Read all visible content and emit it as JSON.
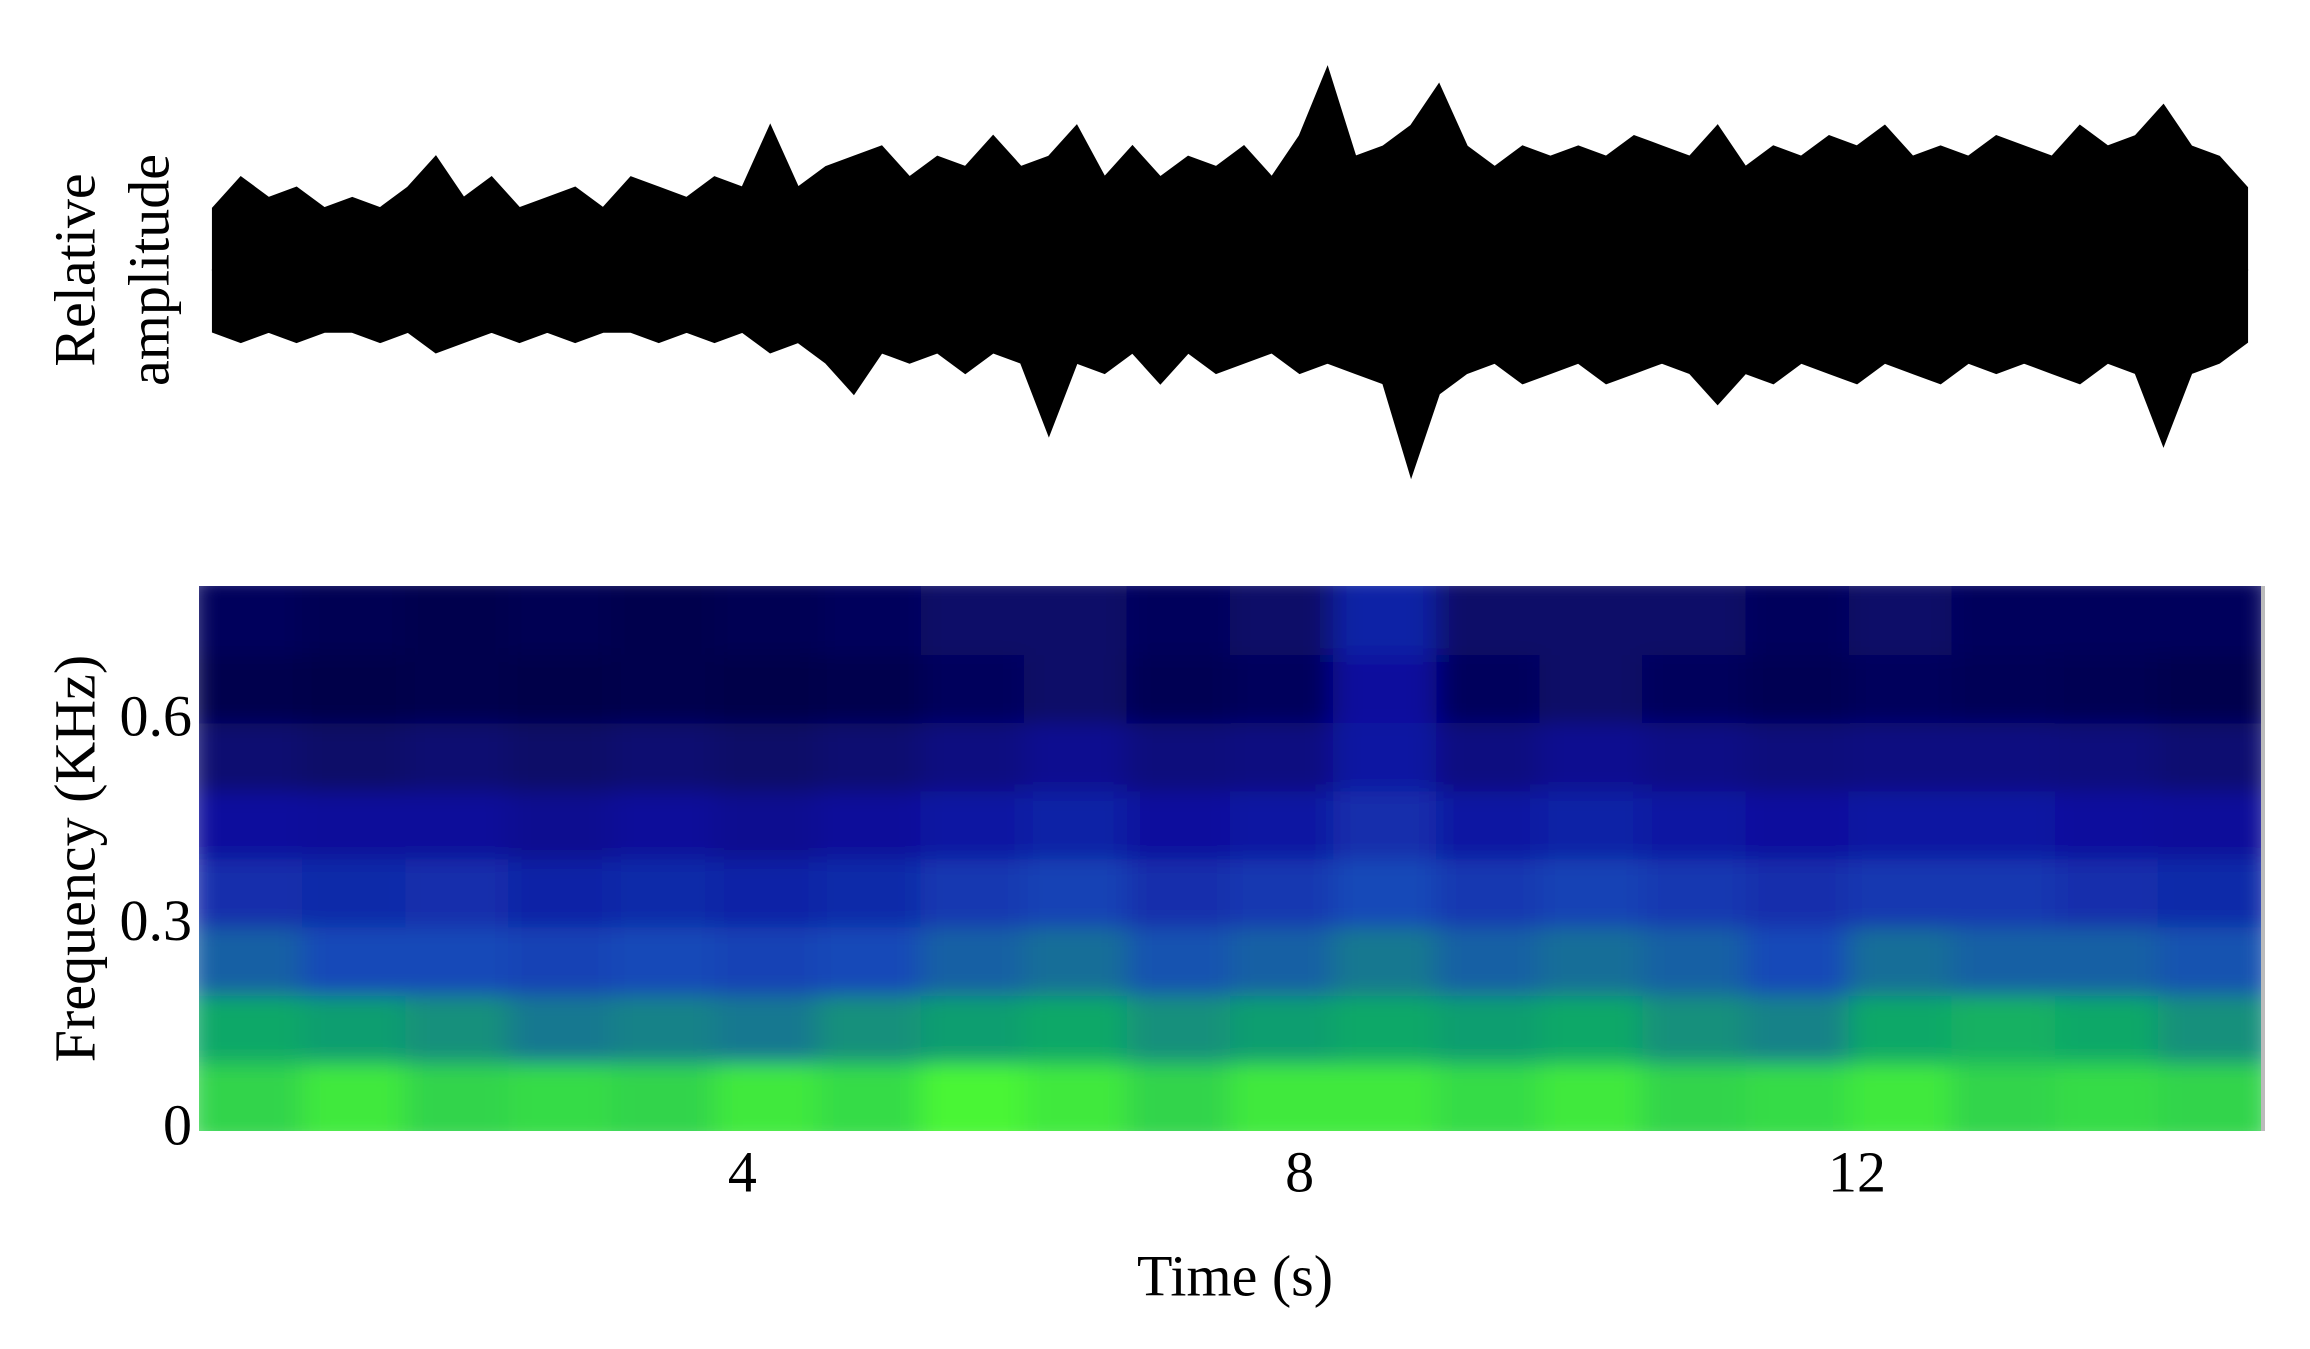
{
  "chart_data": [
    {
      "type": "area",
      "ylabel": [
        "Relative",
        "amplitude"
      ],
      "color": "#000000",
      "xlim": [
        0.1,
        14.9
      ],
      "ylim": [
        -1,
        1
      ],
      "x": [
        0.2,
        0.4,
        0.6,
        0.8,
        1.0,
        1.2,
        1.4,
        1.6,
        1.8,
        2.0,
        2.2,
        2.4,
        2.6,
        2.8,
        3.0,
        3.2,
        3.4,
        3.6,
        3.8,
        4.0,
        4.2,
        4.4,
        4.6,
        4.8,
        5.0,
        5.2,
        5.4,
        5.6,
        5.8,
        6.0,
        6.2,
        6.4,
        6.6,
        6.8,
        7.0,
        7.2,
        7.4,
        7.6,
        7.8,
        8.0,
        8.2,
        8.4,
        8.6,
        8.8,
        9.0,
        9.2,
        9.4,
        9.6,
        9.8,
        10.0,
        10.2,
        10.4,
        10.6,
        10.8,
        11.0,
        11.2,
        11.4,
        11.6,
        11.8,
        12.0,
        12.2,
        12.4,
        12.6,
        12.8,
        13.0,
        13.2,
        13.4,
        13.6,
        13.8,
        14.0,
        14.2,
        14.4,
        14.6,
        14.8
      ],
      "upper": [
        0.3,
        0.45,
        0.35,
        0.4,
        0.3,
        0.35,
        0.3,
        0.4,
        0.55,
        0.35,
        0.45,
        0.3,
        0.35,
        0.4,
        0.3,
        0.45,
        0.4,
        0.35,
        0.45,
        0.4,
        0.7,
        0.4,
        0.5,
        0.55,
        0.6,
        0.45,
        0.55,
        0.5,
        0.65,
        0.5,
        0.55,
        0.7,
        0.45,
        0.6,
        0.45,
        0.55,
        0.5,
        0.6,
        0.45,
        0.65,
        0.98,
        0.55,
        0.6,
        0.7,
        0.9,
        0.6,
        0.5,
        0.6,
        0.55,
        0.6,
        0.55,
        0.65,
        0.6,
        0.55,
        0.7,
        0.5,
        0.6,
        0.55,
        0.65,
        0.6,
        0.7,
        0.55,
        0.6,
        0.55,
        0.65,
        0.6,
        0.55,
        0.7,
        0.6,
        0.65,
        0.8,
        0.6,
        0.55,
        0.4
      ],
      "lower": [
        -0.3,
        -0.35,
        -0.3,
        -0.35,
        -0.3,
        -0.3,
        -0.35,
        -0.3,
        -0.4,
        -0.35,
        -0.3,
        -0.35,
        -0.3,
        -0.35,
        -0.3,
        -0.3,
        -0.35,
        -0.3,
        -0.35,
        -0.3,
        -0.4,
        -0.35,
        -0.45,
        -0.6,
        -0.4,
        -0.45,
        -0.4,
        -0.5,
        -0.4,
        -0.45,
        -0.8,
        -0.45,
        -0.5,
        -0.4,
        -0.55,
        -0.4,
        -0.5,
        -0.45,
        -0.4,
        -0.5,
        -0.45,
        -0.5,
        -0.55,
        -1.0,
        -0.6,
        -0.5,
        -0.45,
        -0.55,
        -0.5,
        -0.45,
        -0.55,
        -0.5,
        -0.45,
        -0.5,
        -0.65,
        -0.5,
        -0.55,
        -0.45,
        -0.5,
        -0.55,
        -0.45,
        -0.5,
        -0.55,
        -0.45,
        -0.5,
        -0.45,
        -0.5,
        -0.55,
        -0.45,
        -0.5,
        -0.85,
        -0.5,
        -0.45,
        -0.35
      ]
    },
    {
      "type": "heatmap",
      "xlabel": "Time (s)",
      "ylabel": "Frequency (KHz)",
      "xlim": [
        0.1,
        14.9
      ],
      "ylim": [
        0,
        0.8
      ],
      "xticks": [
        4,
        8,
        12
      ],
      "yticks": [
        0,
        0.3,
        0.6
      ],
      "colormap": [
        {
          "value": 0,
          "color": "#000000"
        },
        {
          "value": 0.3,
          "color": "#0a0a9a"
        },
        {
          "value": 0.5,
          "color": "#1848b8"
        },
        {
          "value": 0.7,
          "color": "#10a868"
        },
        {
          "value": 0.9,
          "color": "#50ff30"
        }
      ],
      "xbins": [
        0.1,
        0.84,
        1.58,
        2.32,
        3.06,
        3.8,
        4.54,
        5.28,
        6.02,
        6.76,
        7.5,
        8.24,
        8.98,
        9.72,
        10.46,
        11.2,
        11.94,
        12.68,
        13.42,
        14.16,
        14.9
      ],
      "ybins": [
        0,
        0.1,
        0.2,
        0.3,
        0.4,
        0.5,
        0.6,
        0.7,
        0.8
      ],
      "z": [
        [
          0.8,
          0.85,
          0.8,
          0.82,
          0.8,
          0.85,
          0.82,
          0.88,
          0.85,
          0.8,
          0.85,
          0.85,
          0.82,
          0.85,
          0.8,
          0.82,
          0.85,
          0.8,
          0.82,
          0.8
        ],
        [
          0.7,
          0.68,
          0.65,
          0.6,
          0.62,
          0.6,
          0.65,
          0.68,
          0.7,
          0.65,
          0.68,
          0.7,
          0.68,
          0.7,
          0.65,
          0.62,
          0.7,
          0.72,
          0.7,
          0.65
        ],
        [
          0.55,
          0.5,
          0.5,
          0.48,
          0.5,
          0.48,
          0.5,
          0.55,
          0.58,
          0.52,
          0.55,
          0.6,
          0.55,
          0.58,
          0.55,
          0.5,
          0.58,
          0.55,
          0.55,
          0.52
        ],
        [
          0.42,
          0.4,
          0.42,
          0.38,
          0.4,
          0.38,
          0.4,
          0.45,
          0.48,
          0.42,
          0.45,
          0.5,
          0.45,
          0.48,
          0.45,
          0.42,
          0.45,
          0.45,
          0.42,
          0.4
        ],
        [
          0.32,
          0.3,
          0.3,
          0.28,
          0.3,
          0.28,
          0.3,
          0.35,
          0.38,
          0.32,
          0.35,
          0.42,
          0.35,
          0.38,
          0.35,
          0.32,
          0.35,
          0.35,
          0.32,
          0.3
        ],
        [
          0.22,
          0.2,
          0.22,
          0.2,
          0.22,
          0.2,
          0.22,
          0.25,
          0.28,
          0.24,
          0.25,
          0.35,
          0.25,
          0.28,
          0.26,
          0.24,
          0.25,
          0.25,
          0.24,
          0.22
        ],
        [
          0.15,
          0.14,
          0.15,
          0.14,
          0.15,
          0.14,
          0.15,
          0.18,
          0.2,
          0.16,
          0.18,
          0.32,
          0.18,
          0.2,
          0.18,
          0.16,
          0.18,
          0.17,
          0.16,
          0.15
        ],
        [
          0.18,
          0.16,
          0.15,
          0.16,
          0.15,
          0.16,
          0.18,
          0.2,
          0.2,
          0.18,
          0.2,
          0.38,
          0.2,
          0.2,
          0.2,
          0.18,
          0.2,
          0.18,
          0.18,
          0.18
        ]
      ]
    }
  ]
}
